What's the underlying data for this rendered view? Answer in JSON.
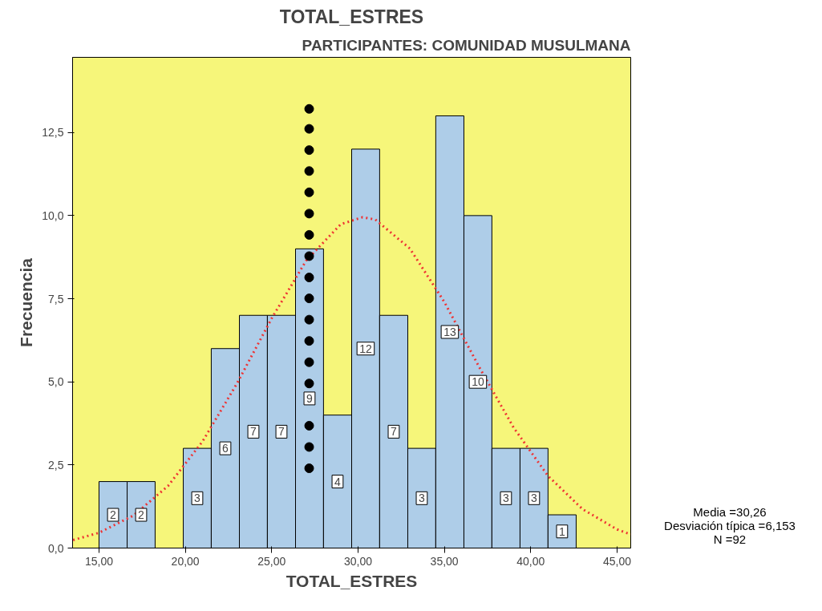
{
  "chart_data": {
    "type": "histogram",
    "title": "TOTAL_ESTRES",
    "subtitle": "PARTICIPANTES: COMUNIDAD MUSULMANA",
    "xlabel": "TOTAL_ESTRES",
    "ylabel": "Frecuencia",
    "bins": [
      15.0,
      16.63,
      18.25,
      19.88,
      21.5,
      23.13,
      24.75,
      26.38,
      28.0,
      29.63,
      31.25,
      32.88,
      34.5,
      36.13,
      37.75,
      39.38,
      41.0,
      42.63
    ],
    "values": [
      2,
      2,
      0,
      3,
      6,
      7,
      7,
      9,
      4,
      12,
      7,
      3,
      13,
      10,
      3,
      3,
      1
    ],
    "value_labels": [
      "2",
      "2",
      null,
      "3",
      "6",
      "7",
      "7",
      "9",
      "4",
      "12",
      "7",
      "3",
      "13",
      "10",
      "3",
      "3",
      "1"
    ],
    "color": "#aecde8",
    "series": [
      {
        "type": "line",
        "color": "#ee3333",
        "line_style": "dotted",
        "x": [
          13.5,
          15,
          17,
          19,
          21,
          23,
          25,
          27,
          29,
          30.26,
          31,
          33,
          35,
          37,
          39,
          41,
          43,
          45,
          45.79
        ],
        "values": [
          0.24,
          0.46,
          0.98,
          1.87,
          3.21,
          4.96,
          6.91,
          8.65,
          9.74,
          9.95,
          9.88,
          9.01,
          7.4,
          5.46,
          3.63,
          2.17,
          1.17,
          0.56,
          0.41
        ]
      },
      {
        "type": "scatter",
        "color": "#000000",
        "marker": "circle",
        "x": [
          27.17,
          27.17,
          27.17,
          27.17,
          27.17,
          27.17,
          27.17,
          27.17,
          27.17,
          27.17,
          27.17,
          27.17,
          27.17,
          27.17,
          27.17,
          27.17,
          27.17
        ],
        "values": [
          2.4,
          3.04,
          3.68,
          4.95,
          5.59,
          6.23,
          6.87,
          7.51,
          8.14,
          8.78,
          9.42,
          10.06,
          10.7,
          11.34,
          11.97,
          12.61,
          13.21
        ]
      }
    ],
    "xlim": [
      13.47,
      45.79
    ],
    "ylim": [
      0,
      14.76
    ],
    "xticks": [
      {
        "value": 15,
        "label": "15,00"
      },
      {
        "value": 20,
        "label": "20,00"
      },
      {
        "value": 25,
        "label": "25,00"
      },
      {
        "value": 30,
        "label": "30,00"
      },
      {
        "value": 35,
        "label": "35,00"
      },
      {
        "value": 40,
        "label": "40,00"
      },
      {
        "value": 45,
        "label": "45,00"
      }
    ],
    "yticks": [
      {
        "value": 0,
        "label": "0,0"
      },
      {
        "value": 2.5,
        "label": "2,5"
      },
      {
        "value": 5,
        "label": "5,0"
      },
      {
        "value": 7.5,
        "label": "7,5"
      },
      {
        "value": 10,
        "label": "10,0"
      },
      {
        "value": 12.5,
        "label": "12,5"
      }
    ],
    "annotations": [
      "Media =30,26",
      "Desviación típica =6,153",
      "N =92"
    ],
    "grid": false
  }
}
